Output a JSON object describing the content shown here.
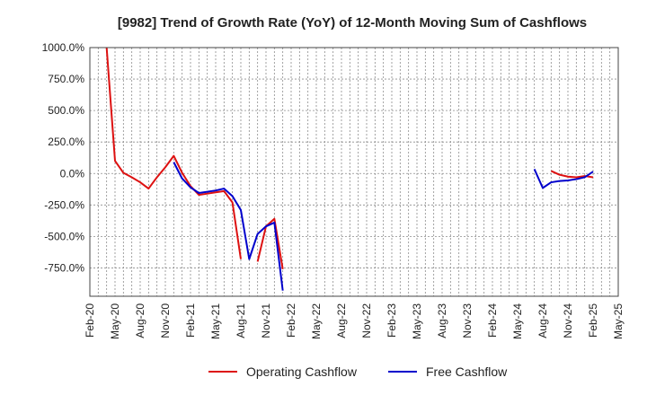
{
  "chart_data": {
    "type": "line",
    "title": "[9982]  Trend of Growth Rate (YoY) of 12-Month Moving Sum of Cashflows",
    "xlabel": "",
    "ylabel": "",
    "x_ticks": [
      "Feb-20",
      "May-20",
      "Aug-20",
      "Nov-20",
      "Feb-21",
      "May-21",
      "Aug-21",
      "Nov-21",
      "Feb-22",
      "May-22",
      "Aug-22",
      "Nov-22",
      "Feb-23",
      "May-23",
      "Aug-23",
      "Nov-23",
      "Feb-24",
      "May-24",
      "Aug-24",
      "Nov-24",
      "Feb-25",
      "May-25"
    ],
    "y_ticks": [
      "1000.0%",
      "750.0%",
      "500.0%",
      "250.0%",
      "0.0%",
      "-250.0%",
      "-500.0%",
      "-750.0%"
    ],
    "y_tick_values": [
      1000,
      750,
      500,
      250,
      0,
      -250,
      -500,
      -750
    ],
    "ylim": [
      -975,
      1000
    ],
    "xlim_months": [
      0,
      63
    ],
    "grid": true,
    "legend_position": "bottom",
    "series": [
      {
        "name": "Operating Cashflow",
        "color": "#dd1111",
        "points": [
          {
            "x": "Apr-20",
            "y": 1000
          },
          {
            "x": "May-20",
            "y": 100
          },
          {
            "x": "Jun-20",
            "y": 5
          },
          {
            "x": "Jul-20",
            "y": -30
          },
          {
            "x": "Aug-20",
            "y": -70
          },
          {
            "x": "Sep-20",
            "y": -120
          },
          {
            "x": "Oct-20",
            "y": -30
          },
          {
            "x": "Nov-20",
            "y": 50
          },
          {
            "x": "Dec-20",
            "y": 140
          },
          {
            "x": "Jan-21",
            "y": 5
          },
          {
            "x": "Feb-21",
            "y": -100
          },
          {
            "x": "Mar-21",
            "y": -170
          },
          {
            "x": "Apr-21",
            "y": -160
          },
          {
            "x": "May-21",
            "y": -150
          },
          {
            "x": "Jun-21",
            "y": -140
          },
          {
            "x": "Jul-21",
            "y": -230
          },
          {
            "x": "Aug-21",
            "y": -680
          },
          {
            "x": "Sep-21",
            "y": null
          },
          {
            "x": "Oct-21",
            "y": -700
          },
          {
            "x": "Nov-21",
            "y": -420
          },
          {
            "x": "Dec-21",
            "y": -360
          },
          {
            "x": "Jan-22",
            "y": -760
          },
          {
            "x": "Sep-24",
            "y": 20
          },
          {
            "x": "Oct-24",
            "y": -10
          },
          {
            "x": "Nov-24",
            "y": -25
          },
          {
            "x": "Dec-24",
            "y": -30
          },
          {
            "x": "Jan-25",
            "y": -20
          },
          {
            "x": "Feb-25",
            "y": -30
          }
        ]
      },
      {
        "name": "Free Cashflow",
        "color": "#0000cc",
        "points": [
          {
            "x": "Dec-20",
            "y": 90
          },
          {
            "x": "Jan-21",
            "y": -40
          },
          {
            "x": "Feb-21",
            "y": -110
          },
          {
            "x": "Mar-21",
            "y": -155
          },
          {
            "x": "Apr-21",
            "y": -145
          },
          {
            "x": "May-21",
            "y": -135
          },
          {
            "x": "Jun-21",
            "y": -120
          },
          {
            "x": "Jul-21",
            "y": -180
          },
          {
            "x": "Aug-21",
            "y": -290
          },
          {
            "x": "Sep-21",
            "y": -680
          },
          {
            "x": "Oct-21",
            "y": -480
          },
          {
            "x": "Nov-21",
            "y": -420
          },
          {
            "x": "Dec-21",
            "y": -390
          },
          {
            "x": "Jan-22",
            "y": -930
          },
          {
            "x": "Jul-24",
            "y": 35
          },
          {
            "x": "Aug-24",
            "y": -115
          },
          {
            "x": "Sep-24",
            "y": -70
          },
          {
            "x": "Oct-24",
            "y": -60
          },
          {
            "x": "Nov-24",
            "y": -55
          },
          {
            "x": "Dec-24",
            "y": -45
          },
          {
            "x": "Jan-25",
            "y": -30
          },
          {
            "x": "Feb-25",
            "y": 15
          }
        ]
      }
    ]
  }
}
